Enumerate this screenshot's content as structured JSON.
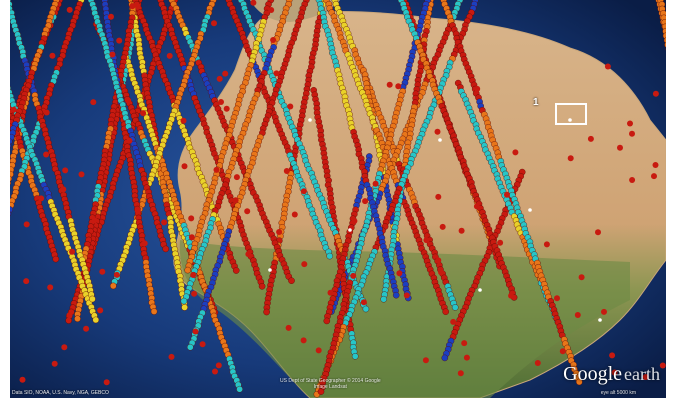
{
  "colors": {
    "ocean": "#173a7a",
    "land_desert": "#d9b88c",
    "land_green": "#6f8f46",
    "track_red": "#c81a10",
    "track_orange": "#e8761a",
    "track_yellow": "#e9d22a",
    "track_cyan": "#27c6c8",
    "track_blue": "#1b3fc0",
    "marker": "#ffffff"
  },
  "map": {
    "region_label": "1",
    "logo": {
      "brand": "Google",
      "product": "earth"
    },
    "credits_line1": "US Dept of State Geographer © 2014 Google",
    "credits_line2": "Image Landsat",
    "scale_note": "Data SIO, NOAA, U.S. Navy, NGA, GEBCO",
    "coords": "eye alt 5000 km"
  }
}
